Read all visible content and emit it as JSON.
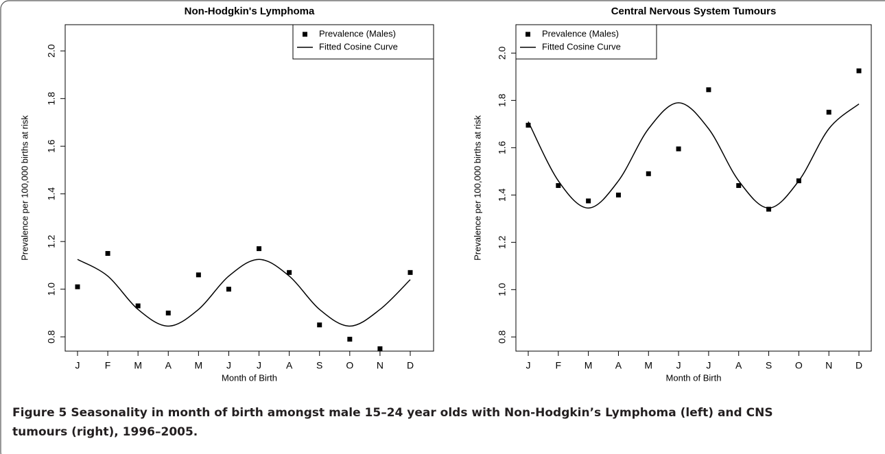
{
  "chart_data": [
    {
      "type": "line",
      "title": "Non-Hodgkin's Lymphoma",
      "x_label": "Month of Birth",
      "y_label": "Prevalence per 100,000 births at risk",
      "categories": [
        "J",
        "F",
        "M",
        "A",
        "M",
        "J",
        "J",
        "A",
        "S",
        "O",
        "N",
        "D"
      ],
      "series": [
        {
          "name": "Prevalence (Males)",
          "color": "#000000",
          "mode": "markers",
          "values": [
            1.01,
            1.15,
            0.93,
            0.9,
            1.06,
            1.0,
            1.17,
            1.07,
            0.85,
            0.79,
            0.75,
            1.07
          ]
        },
        {
          "name": "Fitted Cosine Curve",
          "color": "#000000",
          "mode": "line",
          "values": [
            1.125,
            1.055,
            0.915,
            0.845,
            0.915,
            1.055,
            1.125,
            1.055,
            0.915,
            0.845,
            0.915,
            1.04
          ]
        }
      ],
      "ylim": [
        0.74,
        2.11
      ],
      "yticks": [
        0.8,
        {
          "value": 1,
          "label": "1.0"
        },
        1.2,
        1.4,
        1.6,
        1.8,
        {
          "value": 2,
          "label": "2.0"
        }
      ],
      "legend": "upper right"
    },
    {
      "type": "line",
      "title": "Central Nervous System Tumours",
      "x_label": "Month of Birth",
      "y_label": "Prevalence per 100,000 births at risk",
      "categories": [
        "J",
        "F",
        "M",
        "A",
        "M",
        "J",
        "J",
        "A",
        "S",
        "O",
        "N",
        "D"
      ],
      "series": [
        {
          "name": "Prevalence (Males)",
          "color": "#000000",
          "mode": "markers",
          "values": [
            1.695,
            1.44,
            1.375,
            1.4,
            1.49,
            1.595,
            1.845,
            1.44,
            1.34,
            1.46,
            1.75,
            1.925
          ]
        },
        {
          "name": "Fitted Cosine Curve",
          "color": "#000000",
          "mode": "line",
          "values": [
            1.71,
            1.46,
            1.345,
            1.46,
            1.68,
            1.79,
            1.68,
            1.46,
            1.345,
            1.46,
            1.68,
            1.785
          ]
        }
      ],
      "ylim": [
        0.74,
        2.12
      ],
      "yticks": [
        0.8,
        {
          "value": 1,
          "label": "1.0"
        },
        1.2,
        1.4,
        1.6,
        1.8,
        {
          "value": 2,
          "label": "2.0"
        }
      ],
      "legend": "upper left"
    }
  ],
  "caption": {
    "label": "Figure 5",
    "text": "Seasonality in month of birth amongst male 15–24 year olds with Non-Hodgkin’s Lymphoma (left) and CNS tumours (right), 1996–2005."
  }
}
